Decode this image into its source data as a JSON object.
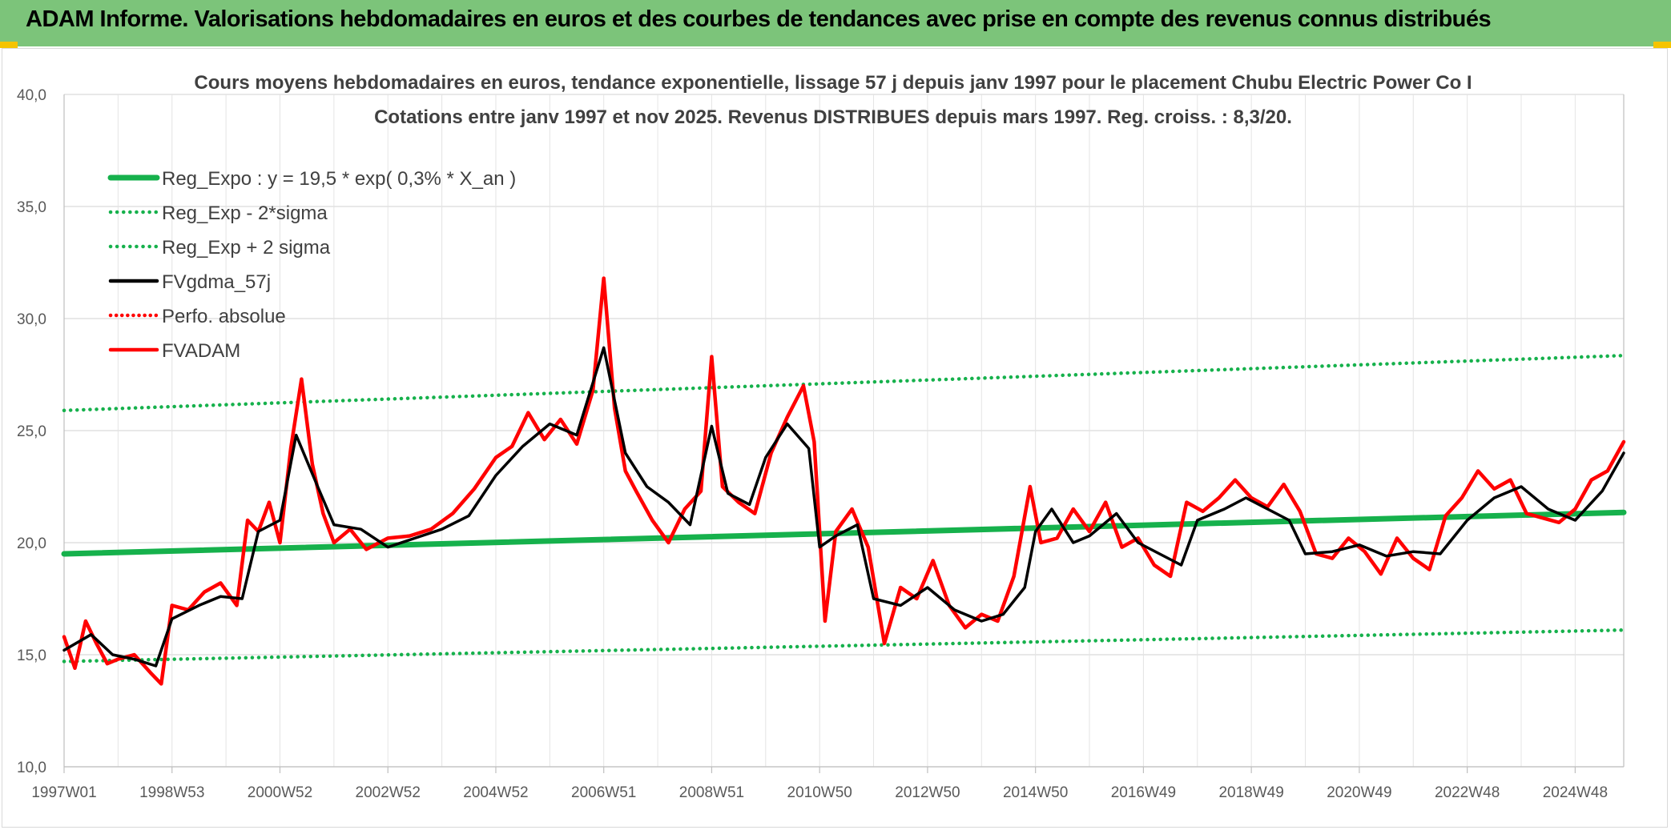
{
  "banner": {
    "title": "ADAM Informe. Valorisations hebdomadaires en euros et des courbes de tendances avec prise en compte des revenus connus distribués"
  },
  "colors": {
    "banner": "#7cc47a",
    "reg": "#16b14c",
    "sigma": "#16b14c",
    "fvgdma": "#000000",
    "perfo": "#ff0000",
    "fvadam": "#ff0000"
  },
  "chart_data": {
    "type": "line",
    "title": "Cours moyens hebdomadaires en euros, tendance exponentielle, lissage 57 j depuis janv 1997 pour le placement Chubu Electric Power Co I",
    "subtitle": "Cotations entre janv 1997 et nov 2025. Revenus DISTRIBUES depuis mars 1997. Reg. croiss. : 8,3/20.",
    "xlabel": "",
    "ylabel": "",
    "ylim": [
      10,
      40
    ],
    "yticks": [
      "10,0",
      "15,0",
      "20,0",
      "25,0",
      "30,0",
      "35,0",
      "40,0"
    ],
    "xlim": [
      1997.0,
      2025.9
    ],
    "xticks": [
      {
        "label": "1997W01",
        "x": 1997.0
      },
      {
        "label": "1998W53",
        "x": 1999.0
      },
      {
        "label": "2000W52",
        "x": 2001.0
      },
      {
        "label": "2002W52",
        "x": 2003.0
      },
      {
        "label": "2004W52",
        "x": 2005.0
      },
      {
        "label": "2006W51",
        "x": 2007.0
      },
      {
        "label": "2008W51",
        "x": 2009.0
      },
      {
        "label": "2010W50",
        "x": 2011.0
      },
      {
        "label": "2012W50",
        "x": 2013.0
      },
      {
        "label": "2014W50",
        "x": 2015.0
      },
      {
        "label": "2016W49",
        "x": 2017.0
      },
      {
        "label": "2018W49",
        "x": 2019.0
      },
      {
        "label": "2020W49",
        "x": 2021.0
      },
      {
        "label": "2022W48",
        "x": 2023.0
      },
      {
        "label": "2024W48",
        "x": 2025.0
      }
    ],
    "grid": true,
    "legend_position": "top-left",
    "series": [
      {
        "name": "Reg_Expo : y = 19,5 * exp( 0,3% *  X_an )",
        "style": "solid-thick",
        "x": [
          1997.0,
          2025.9
        ],
        "y": [
          19.5,
          21.35
        ]
      },
      {
        "name": "Reg_Exp - 2*sigma",
        "style": "dotted",
        "x": [
          1997.0,
          2025.9
        ],
        "y": [
          14.7,
          16.1
        ]
      },
      {
        "name": "Reg_Exp + 2 sigma",
        "style": "dotted",
        "x": [
          1997.0,
          2025.9
        ],
        "y": [
          25.9,
          28.35
        ]
      },
      {
        "name": "FVgdma_57j",
        "style": "solid",
        "x": [
          1997.0,
          1997.5,
          1997.9,
          1998.3,
          1998.7,
          1999.0,
          1999.5,
          1999.9,
          2000.3,
          2000.6,
          2001.0,
          2001.3,
          2001.7,
          2002.0,
          2002.5,
          2003.0,
          2003.5,
          2004.0,
          2004.5,
          2005.0,
          2005.5,
          2006.0,
          2006.5,
          2007.0,
          2007.4,
          2007.8,
          2008.2,
          2008.6,
          2009.0,
          2009.3,
          2009.7,
          2010.0,
          2010.4,
          2010.8,
          2011.0,
          2011.3,
          2011.7,
          2012.0,
          2012.5,
          2013.0,
          2013.5,
          2014.0,
          2014.4,
          2014.8,
          2015.0,
          2015.3,
          2015.7,
          2016.0,
          2016.5,
          2016.9,
          2017.3,
          2017.7,
          2018.0,
          2018.5,
          2018.9,
          2019.3,
          2019.7,
          2020.0,
          2020.5,
          2021.0,
          2021.5,
          2022.0,
          2022.5,
          2023.0,
          2023.5,
          2024.0,
          2024.5,
          2025.0,
          2025.5,
          2025.9
        ],
        "y": [
          15.2,
          15.9,
          15.0,
          14.8,
          14.5,
          16.6,
          17.2,
          17.6,
          17.5,
          20.5,
          21.0,
          24.8,
          22.5,
          20.8,
          20.6,
          19.8,
          20.2,
          20.6,
          21.2,
          23.0,
          24.3,
          25.3,
          24.8,
          28.7,
          24.0,
          22.5,
          21.8,
          20.8,
          25.2,
          22.2,
          21.7,
          23.8,
          25.3,
          24.2,
          19.8,
          20.3,
          20.8,
          17.5,
          17.2,
          18.0,
          17.0,
          16.5,
          16.8,
          18.0,
          20.5,
          21.5,
          20.0,
          20.3,
          21.3,
          20.0,
          19.5,
          19.0,
          21.0,
          21.5,
          22.0,
          21.5,
          21.0,
          19.5,
          19.6,
          19.9,
          19.4,
          19.6,
          19.5,
          21.0,
          22.0,
          22.5,
          21.5,
          21.0,
          22.3,
          24.0
        ]
      },
      {
        "name": "Perfo. absolue",
        "style": "dotted",
        "x": [],
        "y": []
      },
      {
        "name": "FVADAM",
        "style": "solid-thick",
        "x": [
          1997.0,
          1997.2,
          1997.4,
          1997.6,
          1997.8,
          1998.0,
          1998.3,
          1998.6,
          1998.8,
          1999.0,
          1999.3,
          1999.6,
          1999.9,
          2000.2,
          2000.4,
          2000.6,
          2000.8,
          2001.0,
          2001.2,
          2001.4,
          2001.6,
          2001.8,
          2002.0,
          2002.3,
          2002.6,
          2003.0,
          2003.4,
          2003.8,
          2004.2,
          2004.6,
          2005.0,
          2005.3,
          2005.6,
          2005.9,
          2006.2,
          2006.5,
          2006.8,
          2007.0,
          2007.2,
          2007.4,
          2007.6,
          2007.9,
          2008.2,
          2008.5,
          2008.8,
          2009.0,
          2009.2,
          2009.5,
          2009.8,
          2010.1,
          2010.4,
          2010.7,
          2010.9,
          2011.1,
          2011.3,
          2011.6,
          2011.9,
          2012.2,
          2012.5,
          2012.8,
          2013.1,
          2013.4,
          2013.7,
          2014.0,
          2014.3,
          2014.6,
          2014.9,
          2015.1,
          2015.4,
          2015.7,
          2016.0,
          2016.3,
          2016.6,
          2016.9,
          2017.2,
          2017.5,
          2017.8,
          2018.1,
          2018.4,
          2018.7,
          2019.0,
          2019.3,
          2019.6,
          2019.9,
          2020.2,
          2020.5,
          2020.8,
          2021.1,
          2021.4,
          2021.7,
          2022.0,
          2022.3,
          2022.6,
          2022.9,
          2023.2,
          2023.5,
          2023.8,
          2024.1,
          2024.4,
          2024.7,
          2025.0,
          2025.3,
          2025.6,
          2025.9
        ],
        "y": [
          15.8,
          14.4,
          16.5,
          15.5,
          14.6,
          14.8,
          15.0,
          14.2,
          13.7,
          17.2,
          17.0,
          17.8,
          18.2,
          17.2,
          21.0,
          20.5,
          21.8,
          20.0,
          24.2,
          27.3,
          23.5,
          21.3,
          20.0,
          20.6,
          19.7,
          20.2,
          20.3,
          20.6,
          21.3,
          22.4,
          23.8,
          24.3,
          25.8,
          24.6,
          25.5,
          24.4,
          26.8,
          31.8,
          26.0,
          23.2,
          22.3,
          21.0,
          20.0,
          21.5,
          22.3,
          28.3,
          22.5,
          21.8,
          21.3,
          24.0,
          25.6,
          27.0,
          24.5,
          16.5,
          20.5,
          21.5,
          19.8,
          15.5,
          18.0,
          17.5,
          19.2,
          17.2,
          16.2,
          16.8,
          16.5,
          18.5,
          22.5,
          20.0,
          20.2,
          21.5,
          20.5,
          21.8,
          19.8,
          20.2,
          19.0,
          18.5,
          21.8,
          21.4,
          22.0,
          22.8,
          22.0,
          21.6,
          22.6,
          21.4,
          19.5,
          19.3,
          20.2,
          19.6,
          18.6,
          20.2,
          19.3,
          18.8,
          21.2,
          22.0,
          23.2,
          22.4,
          22.8,
          21.3,
          21.1,
          20.9,
          21.5,
          22.8,
          23.2,
          24.5
        ]
      }
    ]
  }
}
